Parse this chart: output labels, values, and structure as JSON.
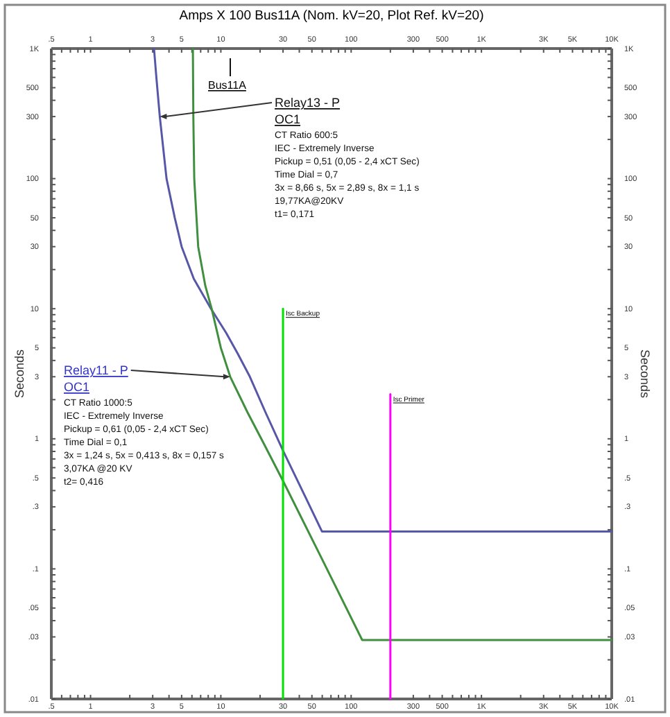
{
  "chart_data": {
    "type": "line",
    "title": "Amps  X  100   Bus11A (Nom. kV=20, Plot Ref. kV=20)",
    "ylabel": "Seconds",
    "y2label": "Seconds",
    "log": "xy",
    "xlim": [
      0.5,
      10000
    ],
    "ylim": [
      0.01,
      1000
    ],
    "xticks": [
      {
        "value": 0.5,
        "label": ".5"
      },
      {
        "value": 0.6,
        "label": null
      },
      {
        "value": 0.7,
        "label": null
      },
      {
        "value": 0.8,
        "label": null
      },
      {
        "value": 0.9,
        "label": null
      },
      {
        "value": 1,
        "label": "1"
      },
      {
        "value": 2,
        "label": null
      },
      {
        "value": 3,
        "label": "3"
      },
      {
        "value": 4,
        "label": null
      },
      {
        "value": 5,
        "label": "5"
      },
      {
        "value": 6,
        "label": null
      },
      {
        "value": 7,
        "label": null
      },
      {
        "value": 8,
        "label": null
      },
      {
        "value": 9,
        "label": null
      },
      {
        "value": 10,
        "label": "10"
      },
      {
        "value": 20,
        "label": null
      },
      {
        "value": 30,
        "label": "30"
      },
      {
        "value": 40,
        "label": null
      },
      {
        "value": 50,
        "label": "50"
      },
      {
        "value": 60,
        "label": null
      },
      {
        "value": 70,
        "label": null
      },
      {
        "value": 80,
        "label": null
      },
      {
        "value": 90,
        "label": null
      },
      {
        "value": 100,
        "label": "100"
      },
      {
        "value": 200,
        "label": null
      },
      {
        "value": 300,
        "label": "300"
      },
      {
        "value": 400,
        "label": null
      },
      {
        "value": 500,
        "label": "500"
      },
      {
        "value": 600,
        "label": null
      },
      {
        "value": 700,
        "label": null
      },
      {
        "value": 800,
        "label": null
      },
      {
        "value": 900,
        "label": null
      },
      {
        "value": 1000,
        "label": "1K"
      },
      {
        "value": 2000,
        "label": null
      },
      {
        "value": 3000,
        "label": "3K"
      },
      {
        "value": 4000,
        "label": null
      },
      {
        "value": 5000,
        "label": "5K"
      },
      {
        "value": 6000,
        "label": null
      },
      {
        "value": 7000,
        "label": null
      },
      {
        "value": 8000,
        "label": null
      },
      {
        "value": 9000,
        "label": null
      },
      {
        "value": 10000,
        "label": "10K"
      }
    ],
    "yticks": [
      {
        "value": 0.01,
        "label": ".01"
      },
      {
        "value": 0.02,
        "label": null
      },
      {
        "value": 0.03,
        "label": ".03"
      },
      {
        "value": 0.04,
        "label": null
      },
      {
        "value": 0.05,
        "label": ".05"
      },
      {
        "value": 0.06,
        "label": null
      },
      {
        "value": 0.07,
        "label": null
      },
      {
        "value": 0.08,
        "label": null
      },
      {
        "value": 0.09,
        "label": null
      },
      {
        "value": 0.1,
        "label": ".1"
      },
      {
        "value": 0.2,
        "label": null
      },
      {
        "value": 0.3,
        "label": ".3"
      },
      {
        "value": 0.4,
        "label": null
      },
      {
        "value": 0.5,
        "label": ".5"
      },
      {
        "value": 0.6,
        "label": null
      },
      {
        "value": 0.7,
        "label": null
      },
      {
        "value": 0.8,
        "label": null
      },
      {
        "value": 0.9,
        "label": null
      },
      {
        "value": 1,
        "label": "1"
      },
      {
        "value": 2,
        "label": null
      },
      {
        "value": 3,
        "label": "3"
      },
      {
        "value": 4,
        "label": null
      },
      {
        "value": 5,
        "label": "5"
      },
      {
        "value": 6,
        "label": null
      },
      {
        "value": 7,
        "label": null
      },
      {
        "value": 8,
        "label": null
      },
      {
        "value": 9,
        "label": null
      },
      {
        "value": 10,
        "label": "10"
      },
      {
        "value": 20,
        "label": null
      },
      {
        "value": 30,
        "label": "30"
      },
      {
        "value": 40,
        "label": null
      },
      {
        "value": 50,
        "label": "50"
      },
      {
        "value": 60,
        "label": null
      },
      {
        "value": 70,
        "label": null
      },
      {
        "value": 80,
        "label": null
      },
      {
        "value": 90,
        "label": null
      },
      {
        "value": 100,
        "label": "100"
      },
      {
        "value": 200,
        "label": null
      },
      {
        "value": 300,
        "label": "300"
      },
      {
        "value": 400,
        "label": null
      },
      {
        "value": 500,
        "label": "500"
      },
      {
        "value": 600,
        "label": null
      },
      {
        "value": 700,
        "label": null
      },
      {
        "value": 800,
        "label": null
      },
      {
        "value": 900,
        "label": null
      },
      {
        "value": 1000,
        "label": "1K"
      }
    ],
    "series": [
      {
        "color": "#5757a8",
        "x": [
          3.07,
          3.2,
          3.4,
          3.83,
          4.43,
          5.0,
          6.2,
          8.4,
          11,
          13.5,
          16.7,
          22,
          30,
          45,
          59.7,
          10000
        ],
        "values": [
          1000,
          600,
          300,
          100,
          50,
          30,
          17,
          10,
          6.5,
          4.5,
          3,
          1.6,
          0.81,
          0.35,
          0.194,
          0.194
        ]
      },
      {
        "color": "#3f8f3f",
        "x": [
          6.1,
          6.15,
          6.25,
          6.7,
          7.6,
          8.5,
          10,
          11.8,
          16,
          21,
          30,
          60,
          121.6,
          10000
        ],
        "values": [
          1000,
          300,
          100,
          30,
          15,
          10,
          5,
          3,
          1.6,
          0.95,
          0.475,
          0.118,
          0.0284,
          0.0284
        ]
      },
      {
        "name": "Isc Backup",
        "color": "#00e000",
        "x": [
          30,
          30
        ],
        "values": [
          0.01,
          10
        ]
      },
      {
        "name": "Isc Primer",
        "color": "#ff00ff",
        "x": [
          200,
          200
        ],
        "values": [
          0.01,
          2.2
        ]
      }
    ],
    "annotations": [
      "Bus11A",
      {
        "text": "Relay13 - P",
        "x": 3.4,
        "y": 300
      },
      "OC1",
      "CT Ratio 600:5\nIEC - Extremely Inverse\nPickup = 0,51 (0,05 - 2,4  xCT Sec)\nTime Dial = 0,7\n3x = 8,66 s, 5x = 2,89 s, 8x = 1,1 s\n19,77KA@20KV\nt1= 0,171",
      {
        "text": "Relay11 - P",
        "x": 11.8,
        "y": 3
      },
      "OC1",
      "CT Ratio 1000:5\nIEC - Extremely Inverse\nPickup = 0,61 (0,05 - 2,4  xCT Sec)\nTime Dial = 0,1\n3x = 1,24 s, 5x = 0,413 s, 8x = 0,157 s\n3,07KA @20 KV\nt2= 0,416"
    ]
  }
}
